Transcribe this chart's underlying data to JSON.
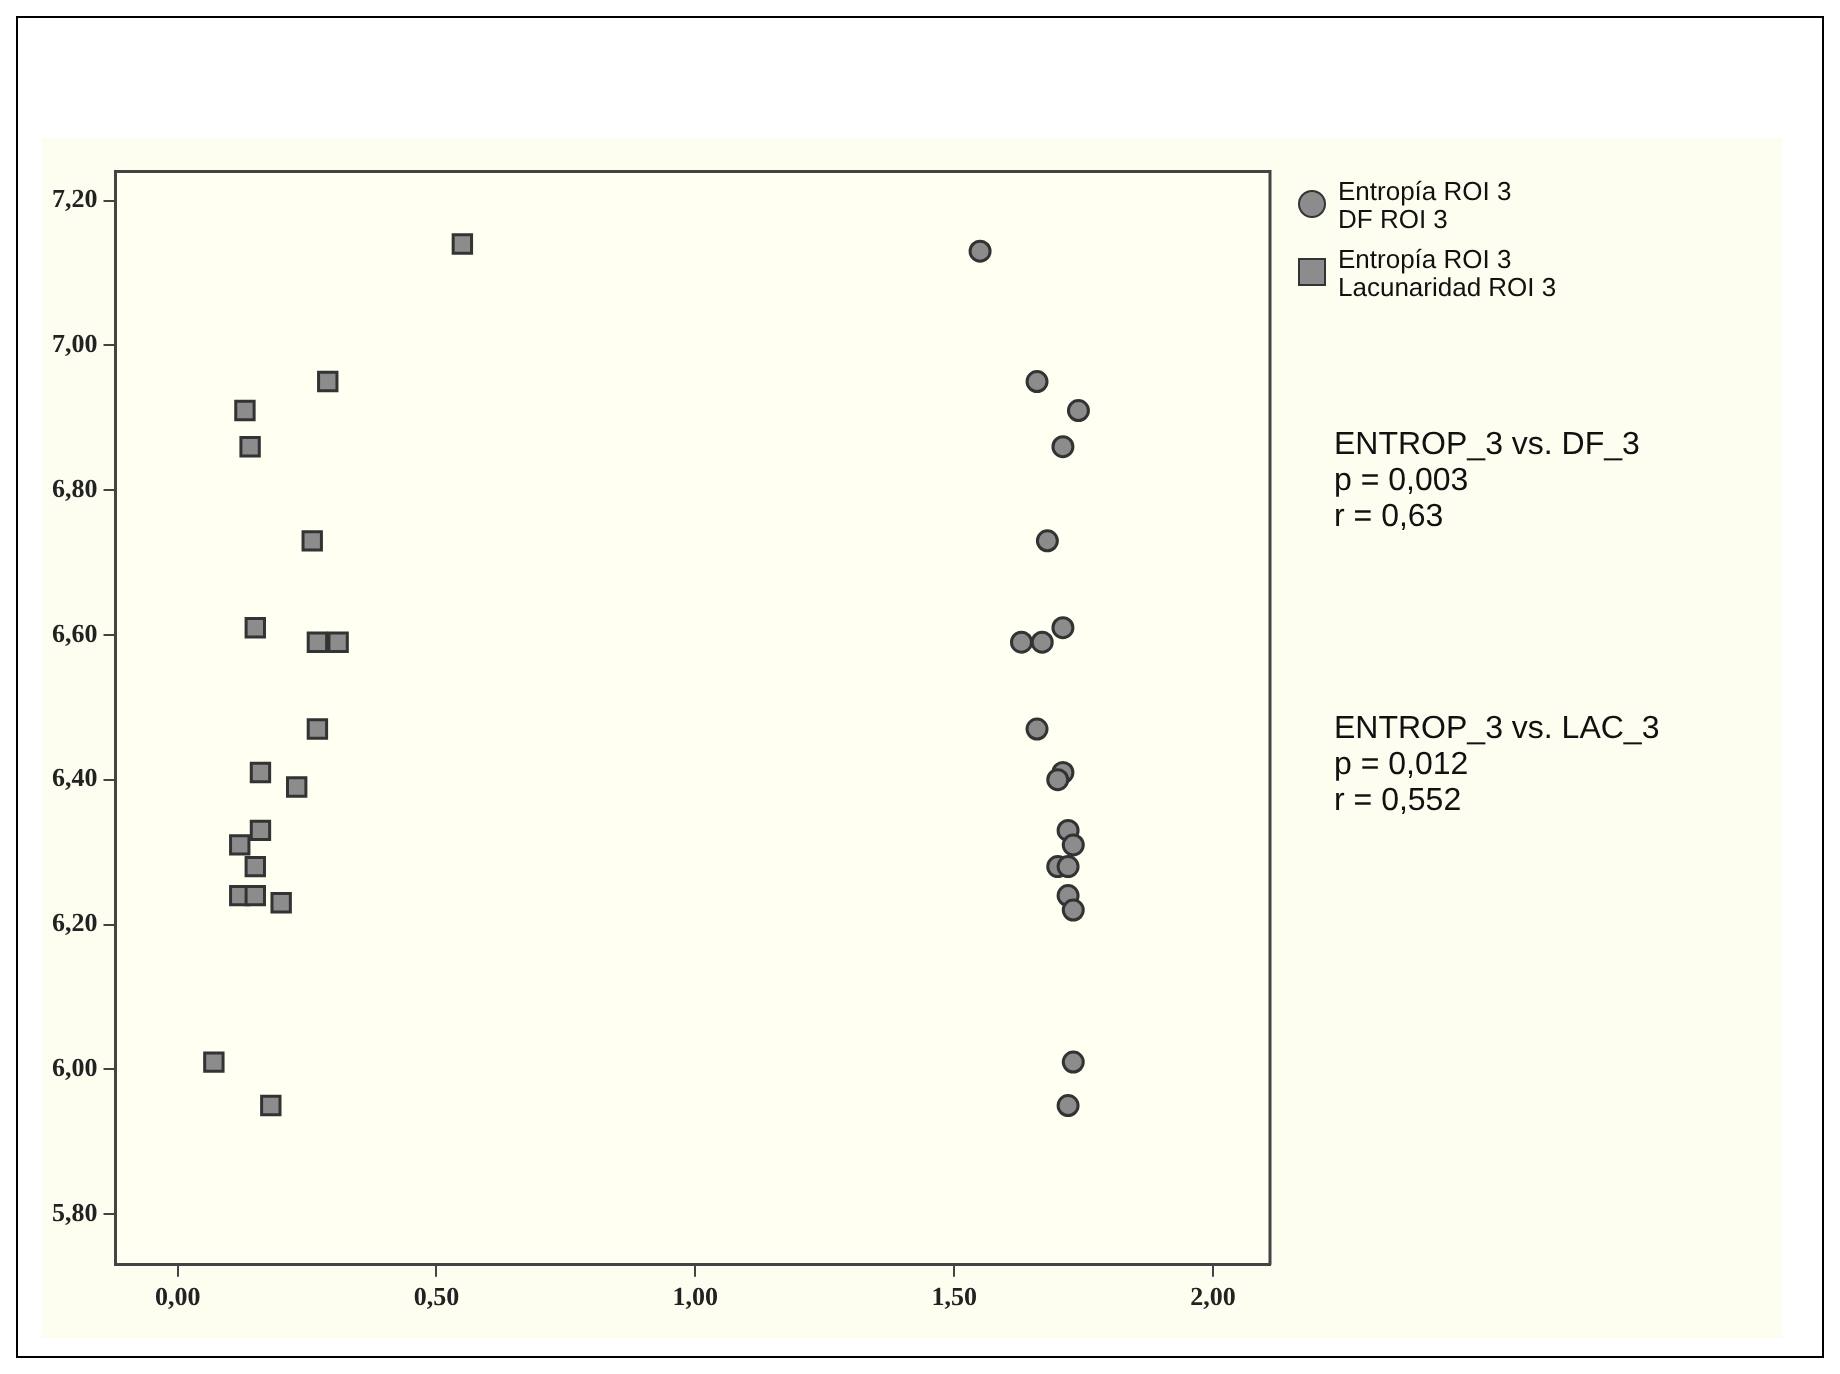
{
  "chart_data": {
    "type": "scatter",
    "xlim": [
      -0.12,
      2.11
    ],
    "ylim": [
      5.73,
      7.24
    ],
    "xticks": [
      {
        "value": 0,
        "label": "0,00"
      },
      {
        "value": 0.5,
        "label": "0,50"
      },
      {
        "value": 1,
        "label": "1,00"
      },
      {
        "value": 1.5,
        "label": "1,50"
      },
      {
        "value": 2,
        "label": "2,00"
      }
    ],
    "yticks": [
      {
        "value": 5.8,
        "label": "5,80"
      },
      {
        "value": 6,
        "label": "6,00"
      },
      {
        "value": 6.2,
        "label": "6,20"
      },
      {
        "value": 6.4,
        "label": "6,40"
      },
      {
        "value": 6.6,
        "label": "6,60"
      },
      {
        "value": 6.8,
        "label": "6,80"
      },
      {
        "value": 7,
        "label": "7,00"
      },
      {
        "value": 7.2,
        "label": "7,20"
      }
    ],
    "grid": false,
    "legend": "top right",
    "series": [
      {
        "name": "Entropía ROI 3\nDF ROI 3",
        "color": "#8c8c8c",
        "marker": "circle",
        "x": [
          1.55,
          1.66,
          1.74,
          1.71,
          1.68,
          1.71,
          1.63,
          1.67,
          1.66,
          1.71,
          1.7,
          1.72,
          1.73,
          1.7,
          1.72,
          1.72,
          1.73,
          1.73,
          1.72
        ],
        "values": [
          7.13,
          6.95,
          6.91,
          6.86,
          6.73,
          6.61,
          6.59,
          6.59,
          6.47,
          6.41,
          6.4,
          6.33,
          6.31,
          6.28,
          6.28,
          6.24,
          6.22,
          6.01,
          5.95
        ]
      },
      {
        "name": "Entropía ROI 3\nLacunaridad ROI 3",
        "color": "#8c8c8c",
        "marker": "square",
        "x": [
          0.55,
          0.29,
          0.13,
          0.14,
          0.26,
          0.15,
          0.27,
          0.31,
          0.27,
          0.16,
          0.23,
          0.16,
          0.12,
          0.15,
          0.12,
          0.15,
          0.2,
          0.07,
          0.18
        ],
        "values": [
          7.14,
          6.95,
          6.91,
          6.86,
          6.73,
          6.61,
          6.59,
          6.59,
          6.47,
          6.41,
          6.39,
          6.33,
          6.31,
          6.28,
          6.24,
          6.24,
          6.23,
          6.01,
          5.95
        ]
      }
    ],
    "annotations": [
      "ENTROP_3 vs. DF_3\np = 0,003\nr = 0,63",
      "ENTROP_3 vs. LAC_3\np = 0,012\nr = 0,552"
    ]
  }
}
